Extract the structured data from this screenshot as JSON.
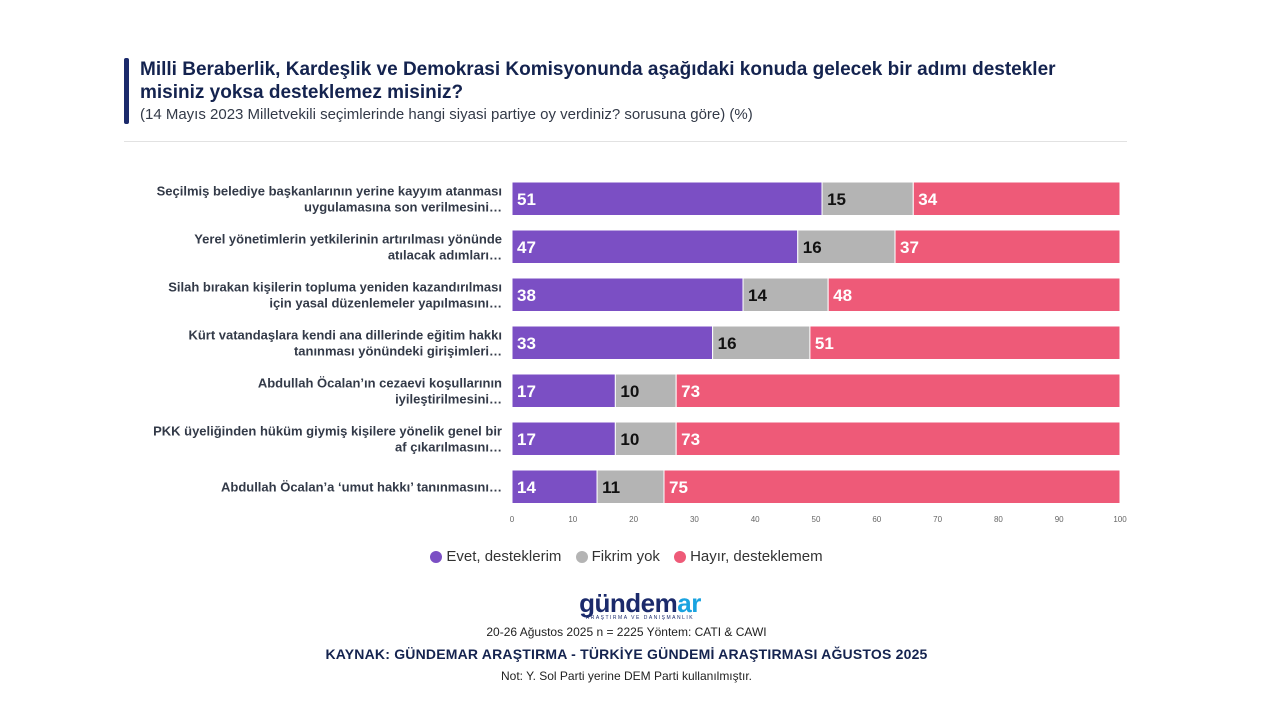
{
  "header": {
    "title": "Milli Beraberlik, Kardeşlik ve Demokrasi Komisyonunda aşağıdaki konuda gelecek bir adımı destekler misiniz yoksa desteklemez misiniz?",
    "subtitle": "(14 Mayıs 2023 Milletvekili seçimlerinde hangi siyasi partiye oy verdiniz? sorusuna göre) (%)"
  },
  "chart_data": {
    "type": "bar",
    "orientation": "horizontal",
    "stacked": true,
    "categories": [
      [
        "Seçilmiş belediye başkanlarının yerine kayyım atanması",
        "uygulamasına son verilmesini…"
      ],
      [
        "Yerel yönetimlerin yetkilerinin artırılması yönünde",
        "atılacak adımları…"
      ],
      [
        "Silah bırakan kişilerin topluma yeniden kazandırılması",
        "için yasal düzenlemeler yapılmasını…"
      ],
      [
        "Kürt vatandaşlara kendi ana dillerinde eğitim hakkı",
        "tanınması yönündeki girişimleri…"
      ],
      [
        "Abdullah Öcalan’ın cezaevi koşullarının",
        "iyileştirilmesini…"
      ],
      [
        "PKK üyeliğinden hüküm giymiş kişilere yönelik genel bir",
        "af çıkarılmasını…"
      ],
      [
        "Abdullah Öcalan’a ‘umut hakkı’ tanınmasını…"
      ]
    ],
    "series": [
      {
        "name": "Evet, desteklerim",
        "color": "#7b4fc4",
        "label_color": "#ffffff",
        "values": [
          51,
          47,
          38,
          33,
          17,
          17,
          14
        ]
      },
      {
        "name": "Fikrim yok",
        "color": "#b4b4b4",
        "label_color": "#111111",
        "values": [
          15,
          16,
          14,
          16,
          10,
          10,
          11
        ]
      },
      {
        "name": "Hayır, desteklemem",
        "color": "#ee5a78",
        "label_color": "#ffffff",
        "values": [
          34,
          37,
          48,
          51,
          73,
          73,
          75
        ]
      }
    ],
    "xlim": [
      0,
      100
    ],
    "xticks": [
      0,
      10,
      20,
      30,
      40,
      50,
      60,
      70,
      80,
      90,
      100
    ],
    "legend_position": "bottom"
  },
  "logo": {
    "main_a": "gündem",
    "main_b": "ar",
    "sub": "ARAŞTIRMA VE DANIŞMANLIK"
  },
  "footer": {
    "line1": "20-26 Ağustos 2025 n = 2225 Yöntem: CATI & CAWI",
    "line2": "KAYNAK: GÜNDEMAR ARAŞTIRMA - TÜRKİYE GÜNDEMİ ARAŞTIRMASI AĞUSTOS 2025",
    "line3": "Not: Y. Sol Parti yerine DEM Parti kullanılmıştır."
  }
}
